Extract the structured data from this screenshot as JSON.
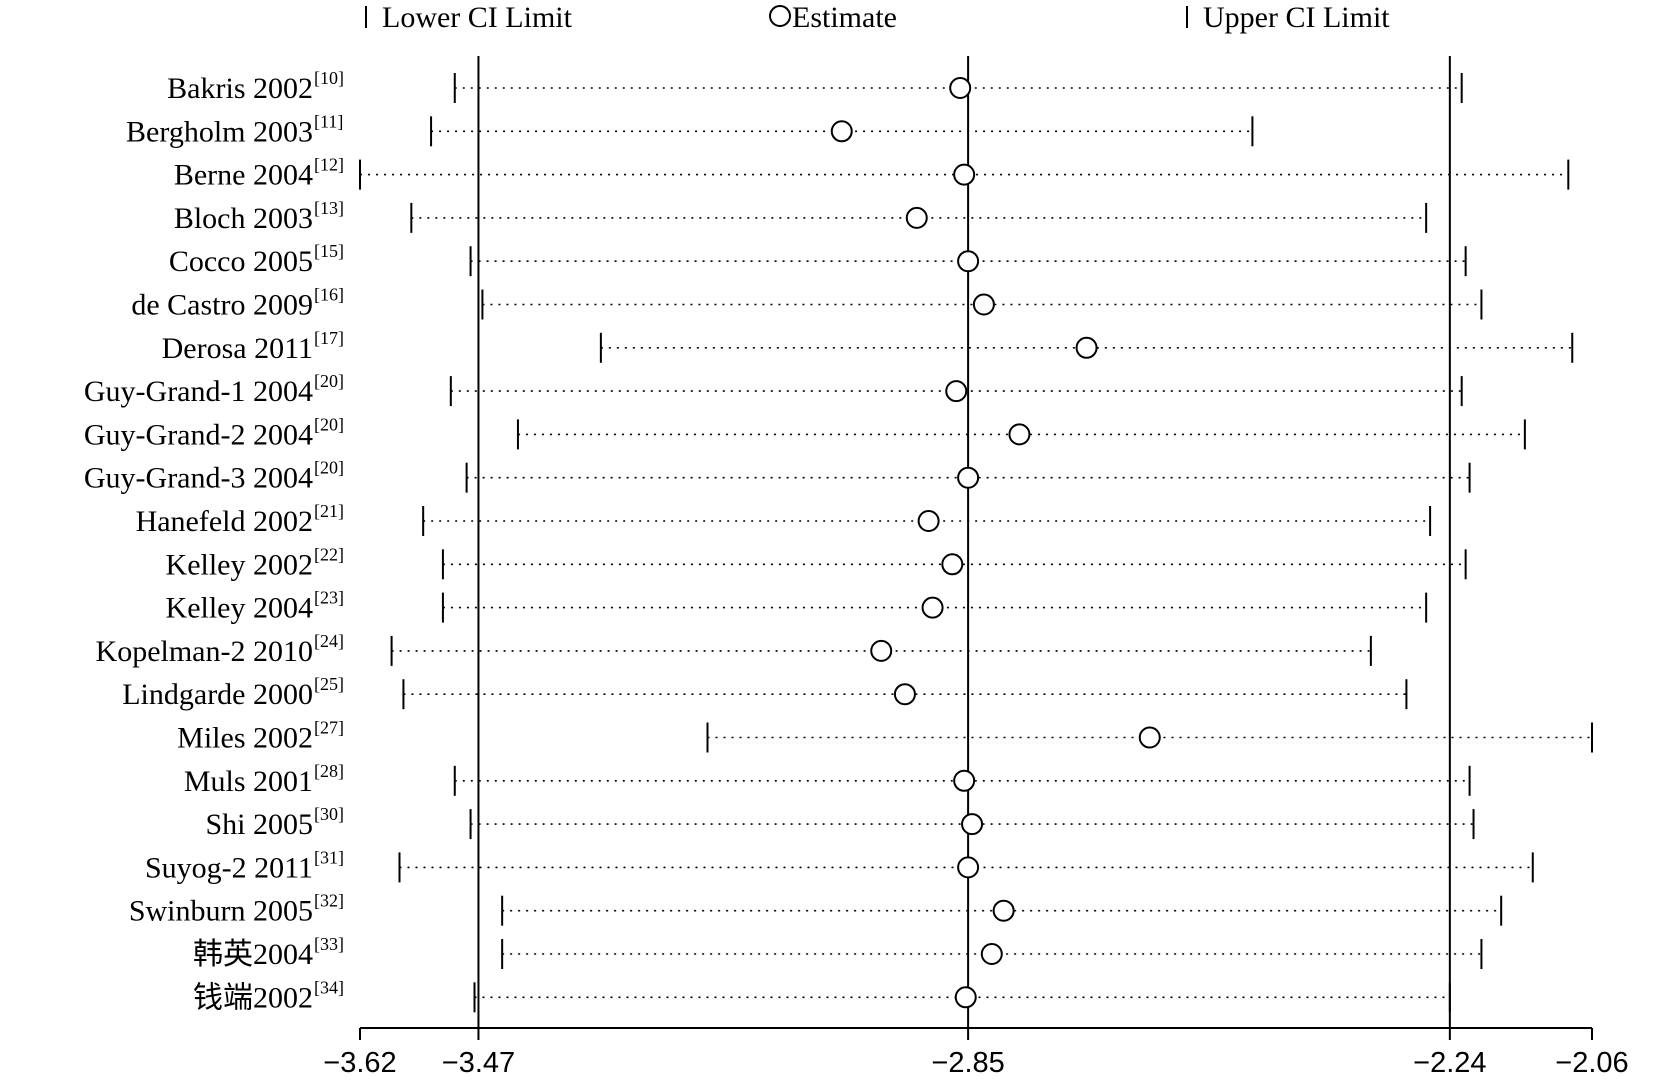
{
  "chart_data": {
    "type": "forest",
    "legend": {
      "lower": "Lower CI Limit",
      "estimate": "Estimate",
      "upper": "Upper CI Limit"
    },
    "xlim": [
      -3.62,
      -2.06
    ],
    "x_ticks": [
      -3.62,
      -3.47,
      -2.85,
      -2.24,
      -2.06
    ],
    "x_tick_labels": [
      "−3.62",
      "−3.47",
      "−2.85",
      "−2.24",
      "−2.06"
    ],
    "reference_lines": [
      -3.47,
      -2.85,
      -2.24
    ],
    "studies": [
      {
        "name": "Bakris 2002",
        "ref": "[10]",
        "lower": -3.5,
        "estimate": -2.86,
        "upper": -2.225
      },
      {
        "name": "Bergholm 2003",
        "ref": "[11]",
        "lower": -3.53,
        "estimate": -3.01,
        "upper": -2.49
      },
      {
        "name": "Berne 2004",
        "ref": "[12]",
        "lower": -3.62,
        "estimate": -2.855,
        "upper": -2.09
      },
      {
        "name": "Bloch 2003",
        "ref": "[13]",
        "lower": -3.555,
        "estimate": -2.915,
        "upper": -2.27
      },
      {
        "name": "Cocco 2005",
        "ref": "[15]",
        "lower": -3.48,
        "estimate": -2.85,
        "upper": -2.22
      },
      {
        "name": "de Castro 2009",
        "ref": "[16]",
        "lower": -3.465,
        "estimate": -2.83,
        "upper": -2.2
      },
      {
        "name": "Derosa 2011",
        "ref": "[17]",
        "lower": -3.315,
        "estimate": -2.7,
        "upper": -2.085
      },
      {
        "name": "Guy-Grand-1 2004",
        "ref": "[20]",
        "lower": -3.505,
        "estimate": -2.865,
        "upper": -2.225
      },
      {
        "name": "Guy-Grand-2 2004",
        "ref": "[20]",
        "lower": -3.42,
        "estimate": -2.785,
        "upper": -2.145
      },
      {
        "name": "Guy-Grand-3 2004",
        "ref": "[20]",
        "lower": -3.485,
        "estimate": -2.85,
        "upper": -2.215
      },
      {
        "name": "Hanefeld 2002",
        "ref": "[21]",
        "lower": -3.54,
        "estimate": -2.9,
        "upper": -2.265
      },
      {
        "name": "Kelley 2002",
        "ref": "[22]",
        "lower": -3.515,
        "estimate": -2.87,
        "upper": -2.22
      },
      {
        "name": "Kelley 2004",
        "ref": "[23]",
        "lower": -3.515,
        "estimate": -2.895,
        "upper": -2.27
      },
      {
        "name": "Kopelman-2 2010",
        "ref": "[24]",
        "lower": -3.58,
        "estimate": -2.96,
        "upper": -2.34
      },
      {
        "name": "Lindgarde 2000",
        "ref": "[25]",
        "lower": -3.565,
        "estimate": -2.93,
        "upper": -2.295
      },
      {
        "name": "Miles 2002",
        "ref": "[27]",
        "lower": -3.18,
        "estimate": -2.62,
        "upper": -2.06
      },
      {
        "name": "Muls 2001",
        "ref": "[28]",
        "lower": -3.5,
        "estimate": -2.855,
        "upper": -2.215
      },
      {
        "name": "Shi 2005",
        "ref": "[30]",
        "lower": -3.48,
        "estimate": -2.845,
        "upper": -2.21
      },
      {
        "name": "Suyog-2 2011",
        "ref": "[31]",
        "lower": -3.57,
        "estimate": -2.85,
        "upper": -2.135
      },
      {
        "name": "Swinburn 2005",
        "ref": "[32]",
        "lower": -3.44,
        "estimate": -2.805,
        "upper": -2.175
      },
      {
        "name": "韩英2004",
        "ref": "[33]",
        "lower": -3.44,
        "estimate": -2.82,
        "upper": -2.2
      },
      {
        "name": "钱端2002",
        "ref": "[34]",
        "lower": -3.475,
        "estimate": -2.853,
        "upper": -2.24
      }
    ]
  }
}
